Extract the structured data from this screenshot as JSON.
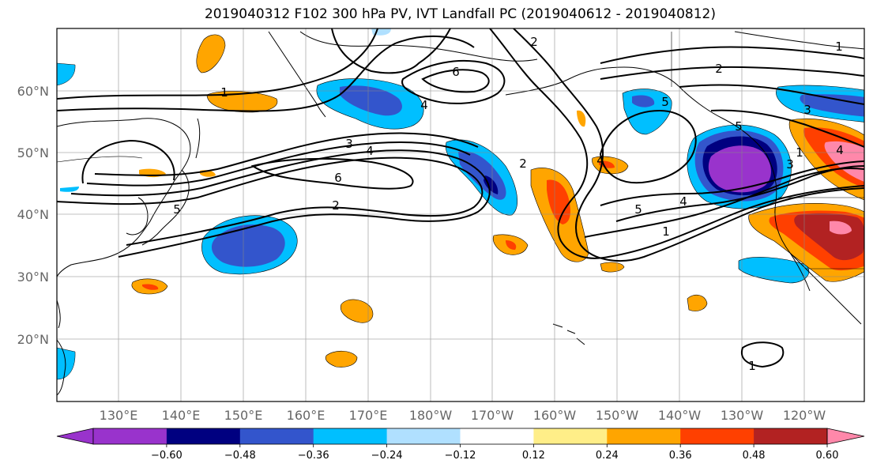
{
  "title": "2019040312 F102 300 hPa PV, IVT Landfall PC (2019040612 - 2019040812)",
  "lat_labels": [
    "60°N",
    "50°N",
    "40°N",
    "30°N",
    "20°N"
  ],
  "lon_labels": [
    "130°E",
    "140°E",
    "150°E",
    "160°E",
    "170°E",
    "180°W",
    "170°W",
    "160°W",
    "150°W",
    "140°W",
    "130°W",
    "120°W"
  ],
  "contour_labels": [
    "1",
    "2",
    "3",
    "4",
    "5",
    "6",
    "2",
    "4",
    "3",
    "6",
    "2",
    "5",
    "1",
    "2",
    "3",
    "4",
    "5",
    "4",
    "5",
    "1",
    "1",
    "4",
    "1"
  ],
  "colorbar": {
    "tick_labels": [
      "−0.60",
      "−0.48",
      "−0.36",
      "−0.24",
      "−0.12",
      "0.12",
      "0.24",
      "0.36",
      "0.48",
      "0.60"
    ],
    "colors": [
      "#9933cc",
      "#000080",
      "#3355cc",
      "#00bfff",
      "#b0e0ff",
      "#ffffff",
      "#ffee88",
      "#ffa500",
      "#ff4000",
      "#b22222",
      "#ff88aa"
    ]
  },
  "legend_colors": {
    "neg_strong": "#9933cc",
    "neg_navy": "#000080",
    "neg_blue": "#3355cc",
    "neg_sky": "#00bfff",
    "neg_pale": "#b0e0ff",
    "pos_pale": "#ffee88",
    "pos_orange": "#ffa500",
    "pos_red": "#ff4000",
    "pos_darkred": "#b22222",
    "pos_pink": "#ff88aa"
  }
}
